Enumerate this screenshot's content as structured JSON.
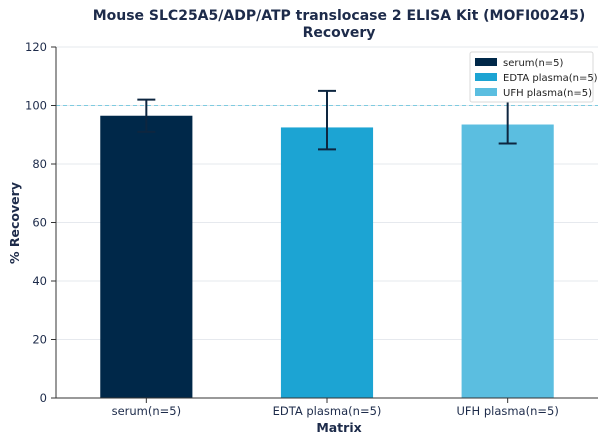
{
  "chart_data": {
    "type": "bar",
    "title": "Mouse SLC25A5/ADP/ATP translocase 2 ELISA Kit (MOFI00245)",
    "subtitle": "Recovery",
    "xlabel": "Matrix",
    "ylabel": "% Recovery",
    "ylim": [
      0,
      120
    ],
    "yticks": [
      0,
      20,
      40,
      60,
      80,
      100,
      120
    ],
    "categories": [
      "serum(n=5)",
      "EDTA plasma(n=5)",
      "UFH plasma(n=5)"
    ],
    "values": [
      96.5,
      92.5,
      93.5
    ],
    "error_low": [
      91,
      85,
      87
    ],
    "error_high": [
      102,
      105,
      102
    ],
    "reference_line": 100,
    "colors": [
      "#002849",
      "#1ca4d3",
      "#5bbee0"
    ],
    "reference_color": "#7ecbe0",
    "errorbar_color": "#0d2640",
    "grid": "horizontal",
    "legend_position": "top-right",
    "legend": [
      "serum(n=5)",
      "EDTA plasma(n=5)",
      "UFH plasma(n=5)"
    ]
  }
}
